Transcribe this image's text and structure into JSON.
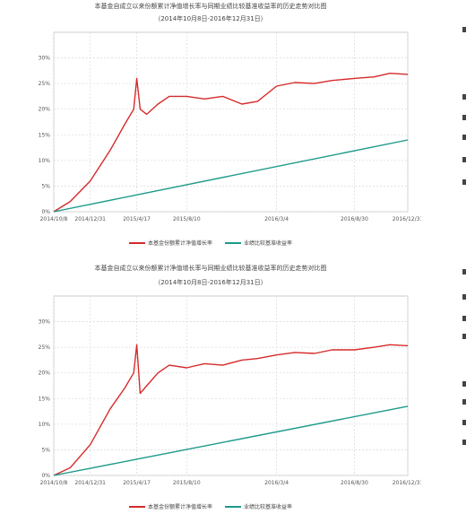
{
  "colors": {
    "fund": "#d62a2a",
    "benchmark": "#1d9a8a",
    "grid": "#dddddd",
    "axis": "#888888"
  },
  "charts": [
    {
      "title": "本基金自成立以来份额累计净值增长率与同期业绩比较基准收益率的历史走势对比图",
      "subtitle": "（2014年10月8日-2016年12月31日）",
      "legend": [
        "本基金份额累计净值增长率",
        "业绩比较基准收益率"
      ]
    },
    {
      "title": "本基金自成立以来份额累计净值增长率与同期业绩比较基准收益率的历史走势对比图",
      "subtitle": "（2014年10月8日-2016年12月31日）",
      "legend": [
        "本基金份额累计净值增长率",
        "业绩比较基准收益率"
      ]
    }
  ],
  "chart_data": [
    {
      "type": "line",
      "title": "本基金自成立以来份额累计净值增长率与同期业绩比较基准收益率的历史走势对比图",
      "x_ticks": [
        "2014/10/8",
        "2014/12/31",
        "2015/4/17",
        "2015/8/10",
        "2016/3/4",
        "2016/8/30",
        "2016/12/31"
      ],
      "ylim": [
        0,
        35
      ],
      "y_ticks": [
        "0%",
        "5%",
        "10%",
        "15%",
        "20%",
        "25%",
        "30%"
      ],
      "grid": true,
      "legend_position": "bottom",
      "series": [
        {
          "name": "本基金份额累计净值增长率",
          "x": [
            "2014/10/8",
            "2014/11/15",
            "2014/12/31",
            "2015/2/15",
            "2015/3/20",
            "2015/4/10",
            "2015/4/17",
            "2015/4/25",
            "2015/5/10",
            "2015/6/5",
            "2015/7/1",
            "2015/8/10",
            "2015/9/20",
            "2015/11/1",
            "2015/12/15",
            "2016/1/20",
            "2016/3/4",
            "2016/4/15",
            "2016/5/30",
            "2016/7/10",
            "2016/8/30",
            "2016/10/15",
            "2016/11/20",
            "2016/12/31"
          ],
          "values": [
            0,
            2,
            6,
            12,
            17,
            20,
            26,
            20,
            19,
            21,
            22.5,
            22.5,
            22.0,
            22.5,
            21.0,
            21.5,
            24.5,
            25.2,
            25.0,
            25.6,
            26.0,
            26.3,
            27.0,
            26.8
          ]
        },
        {
          "name": "业绩比较基准收益率",
          "x": [
            "2014/10/8",
            "2016/12/31"
          ],
          "values": [
            0,
            14
          ]
        }
      ]
    },
    {
      "type": "line",
      "title": "本基金自成立以来份额累计净值增长率与同期业绩比较基准收益率的历史走势对比图",
      "x_ticks": [
        "2014/10/8",
        "2014/12/31",
        "2015/4/17",
        "2015/8/10",
        "2016/3/4",
        "2016/8/30",
        "2016/12/31"
      ],
      "ylim": [
        0,
        35
      ],
      "y_ticks": [
        "0%",
        "5%",
        "10%",
        "15%",
        "20%",
        "25%",
        "30%"
      ],
      "grid": true,
      "legend_position": "bottom",
      "series": [
        {
          "name": "本基金份额累计净值增长率",
          "x": [
            "2014/10/8",
            "2014/11/15",
            "2014/12/31",
            "2015/2/15",
            "2015/3/20",
            "2015/4/10",
            "2015/4/17",
            "2015/4/25",
            "2015/5/10",
            "2015/6/5",
            "2015/7/1",
            "2015/8/10",
            "2015/9/20",
            "2015/11/1",
            "2015/12/15",
            "2016/1/20",
            "2016/3/4",
            "2016/4/15",
            "2016/5/30",
            "2016/7/10",
            "2016/8/30",
            "2016/10/15",
            "2016/11/20",
            "2016/12/31"
          ],
          "values": [
            0,
            1.5,
            6,
            13,
            17,
            20,
            25.5,
            16,
            17.5,
            20,
            21.5,
            21.0,
            21.8,
            21.5,
            22.5,
            22.8,
            23.5,
            24.0,
            23.8,
            24.5,
            24.5,
            25.0,
            25.5,
            25.3
          ]
        },
        {
          "name": "业绩比较基准收益率",
          "x": [
            "2014/10/8",
            "2016/12/31"
          ],
          "values": [
            0,
            13.5
          ]
        }
      ]
    }
  ]
}
